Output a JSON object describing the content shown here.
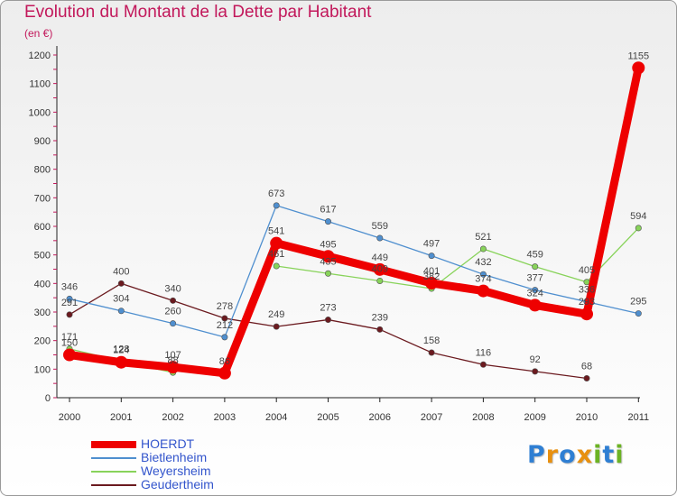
{
  "title": "Evolution du Montant de la Dette par Habitant",
  "unit": "(en €)",
  "logo": {
    "letters": [
      {
        "ch": "P",
        "color": "#2f7fd3"
      },
      {
        "ch": "r",
        "color": "#e8900f"
      },
      {
        "ch": "o",
        "color": "#2f7fd3"
      },
      {
        "ch": "x",
        "color": "#e8900f"
      },
      {
        "ch": "i",
        "color": "#6cb324"
      },
      {
        "ch": "t",
        "color": "#2f7fd3"
      },
      {
        "ch": "i",
        "color": "#6cb324"
      }
    ]
  },
  "chart_data": {
    "type": "line",
    "x": [
      "2000",
      "2001",
      "2002",
      "2003",
      "2004",
      "2005",
      "2006",
      "2007",
      "2008",
      "2009",
      "2010",
      "2011"
    ],
    "ylim": [
      0,
      1200
    ],
    "yticks": [
      0,
      100,
      200,
      300,
      400,
      500,
      600,
      700,
      800,
      900,
      1000,
      1100,
      1200
    ],
    "grid": false,
    "legend_position": "bottom-left",
    "series": [
      {
        "name": "Geudertheim",
        "color": "#6b1a1f",
        "values": [
          291,
          400,
          340,
          278,
          249,
          273,
          239,
          158,
          116,
          92,
          68,
          null
        ]
      },
      {
        "name": "Weyersheim",
        "color": "#88d35a",
        "values": [
          171,
          128,
          88,
          null,
          461,
          435,
          409,
          382,
          521,
          459,
          405,
          594
        ]
      },
      {
        "name": "Bietlenheim",
        "color": "#4f8fcf",
        "values": [
          346,
          304,
          260,
          212,
          673,
          617,
          559,
          497,
          432,
          377,
          336,
          295
        ]
      },
      {
        "name": "HOERDT",
        "color": "#ee0000",
        "values": [
          150,
          124,
          107,
          86,
          541,
          495,
          449,
          401,
          374,
          324,
          293,
          1155
        ]
      }
    ]
  }
}
